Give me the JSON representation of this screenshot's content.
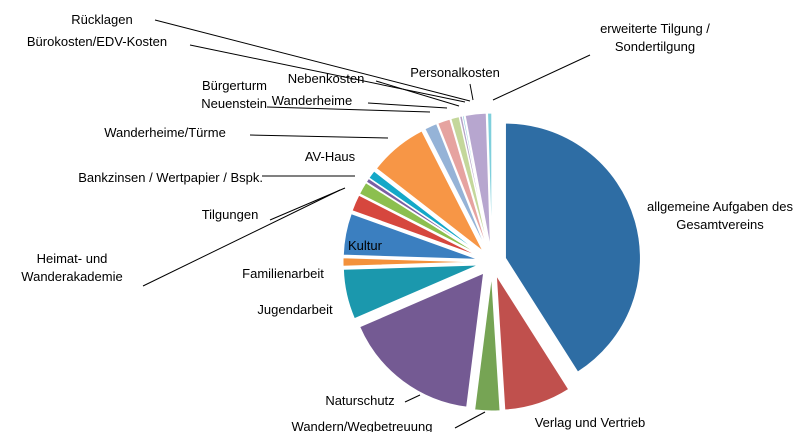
{
  "chart_data": {
    "type": "pie",
    "categories": [
      "allgemeine Aufgaben des Gesamtvereins",
      "Verlag und Vertrieb",
      "Wandern/Wegbetreuung",
      "Naturschutz",
      "Jugendarbeit",
      "Familienarbeit",
      "Kultur",
      "Heimat- und Wanderakademie",
      "Tilgungen",
      "Bankzinsen / Wertpapier / Bspk.",
      "AV-Haus",
      "Wanderheime/Türme",
      "Bürgerturm Neuenstein",
      "Wanderheime",
      "Nebenkosten",
      "Bürokosten/EDV-Kosten",
      "Rücklagen",
      "Personalkosten",
      "erweiterte Tilgung / Sondertilgung"
    ],
    "values": [
      41,
      8,
      3,
      16.5,
      6,
      1,
      5,
      2,
      1.5,
      0.5,
      1,
      7,
      1.5,
      1.5,
      1,
      0.3,
      0.2,
      2.5,
      0.5
    ],
    "colors": [
      "#2e6da4",
      "#c0504d",
      "#76a454",
      "#745a93",
      "#1b98ad",
      "#f3913b",
      "#3b7fc0",
      "#d6473e",
      "#8cbf4f",
      "#7a5fa3",
      "#14a8c8",
      "#f79646",
      "#95b3d7",
      "#e6a3a0",
      "#c4d79b",
      "#b3a2c7",
      "#93cddd",
      "#b7a6cf",
      "#7fcfdc"
    ]
  }
}
